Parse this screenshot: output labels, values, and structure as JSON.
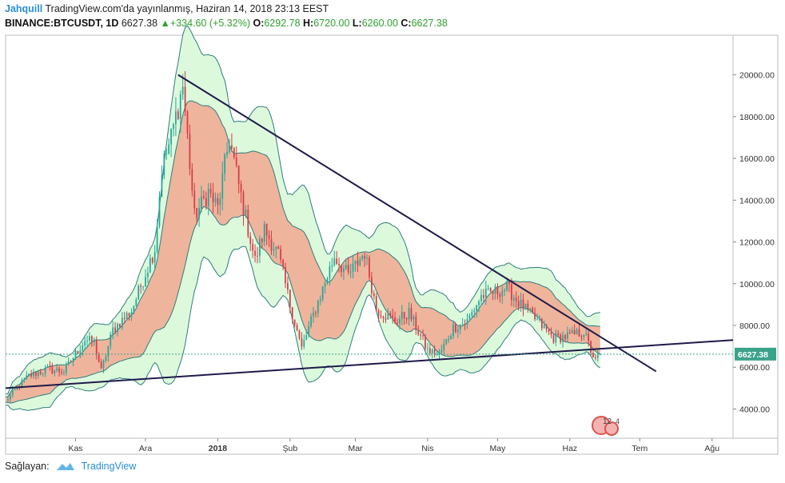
{
  "header": {
    "user": "Jahquill",
    "published": "TradingView.com'da yayınlanmış, Haziran 14, 2018 23:13 EEST",
    "symbol": "BINANCE:BTCUSDT, 1D",
    "last": "6627.38",
    "change": "+334.60 (+5.32%)",
    "open_label": "O:",
    "open": "6292.78",
    "high_label": "H:",
    "high": "6720.00",
    "low_label": "L:",
    "low": "6260.00",
    "close_label": "C:",
    "close": "6627.38"
  },
  "footer": {
    "provider_label": "Sağlayan:",
    "brand": "TradingView",
    "flag_badge": "12",
    "flag_badge_small": "4"
  },
  "colors": {
    "up": "#26a69a",
    "down": "#d93a47",
    "outer_band_fill": "#ddf9dc",
    "outer_band_line": "#2e7d7d",
    "inner_band_fill": "#efb49c",
    "trendline": "#1e1a4a",
    "price_line": "#3aa38a"
  },
  "chart_data": {
    "type": "candlestick",
    "symbol": "BINANCE:BTCUSDT",
    "interval": "1D",
    "x_ticks": [
      "Kas",
      "Ara",
      "2018",
      "Şub",
      "Mar",
      "Nis",
      "May",
      "Haz",
      "Tem",
      "Ağu"
    ],
    "x_tick_dates": [
      "2017-11-01",
      "2017-12-01",
      "2018-01-01",
      "2018-02-01",
      "2018-03-01",
      "2018-04-01",
      "2018-05-01",
      "2018-06-01",
      "2018-07-01",
      "2018-08-01"
    ],
    "xlim": [
      "2017-10-02",
      "2018-08-10"
    ],
    "y_ticks": [
      "4000.00",
      "6000.00",
      "8000.00",
      "10000.00",
      "12000.00",
      "14000.00",
      "16000.00",
      "18000.00",
      "20000.00"
    ],
    "ylim": [
      2600,
      21900
    ],
    "last_price_label": "6627.38",
    "last_price": 6627.38,
    "close_anchors": [
      [
        "2017-10-02",
        4400
      ],
      [
        "2017-10-12",
        5600
      ],
      [
        "2017-10-20",
        5900
      ],
      [
        "2017-10-27",
        5800
      ],
      [
        "2017-11-05",
        7300
      ],
      [
        "2017-11-09",
        7200
      ],
      [
        "2017-11-12",
        5800
      ],
      [
        "2017-11-17",
        7800
      ],
      [
        "2017-11-25",
        8700
      ],
      [
        "2017-11-29",
        9900
      ],
      [
        "2017-12-05",
        11700
      ],
      [
        "2017-12-08",
        15500
      ],
      [
        "2017-12-12",
        17000
      ],
      [
        "2017-12-17",
        19500
      ],
      [
        "2017-12-22",
        13200
      ],
      [
        "2017-12-28",
        14400
      ],
      [
        "2018-01-01",
        13600
      ],
      [
        "2018-01-06",
        17000
      ],
      [
        "2018-01-10",
        14700
      ],
      [
        "2018-01-17",
        11100
      ],
      [
        "2018-01-21",
        12600
      ],
      [
        "2018-01-27",
        11400
      ],
      [
        "2018-02-01",
        9000
      ],
      [
        "2018-02-06",
        6900
      ],
      [
        "2018-02-10",
        8200
      ],
      [
        "2018-02-20",
        11300
      ],
      [
        "2018-02-26",
        10400
      ],
      [
        "2018-03-05",
        11500
      ],
      [
        "2018-03-10",
        8800
      ],
      [
        "2018-03-18",
        8200
      ],
      [
        "2018-03-24",
        8600
      ],
      [
        "2018-04-01",
        6800
      ],
      [
        "2018-04-06",
        6600
      ],
      [
        "2018-04-12",
        7900
      ],
      [
        "2018-04-18",
        8200
      ],
      [
        "2018-04-24",
        9400
      ],
      [
        "2018-05-05",
        9800
      ],
      [
        "2018-05-10",
        9100
      ],
      [
        "2018-05-18",
        8200
      ],
      [
        "2018-05-25",
        7400
      ],
      [
        "2018-06-01",
        7500
      ],
      [
        "2018-06-07",
        7700
      ],
      [
        "2018-06-10",
        6800
      ],
      [
        "2018-06-12",
        6300
      ],
      [
        "2018-06-14",
        6627.38
      ]
    ],
    "trendlines": [
      {
        "from": [
          "2017-12-15",
          20000
        ],
        "to": [
          "2018-07-08",
          5800
        ]
      },
      {
        "from": [
          "2017-10-02",
          5000
        ],
        "to": [
          "2018-08-10",
          7300
        ]
      }
    ],
    "inner_band_period": 20,
    "inner_band_mult": 1.0,
    "outer_band_period": 20,
    "outer_band_mult": 2.0
  }
}
